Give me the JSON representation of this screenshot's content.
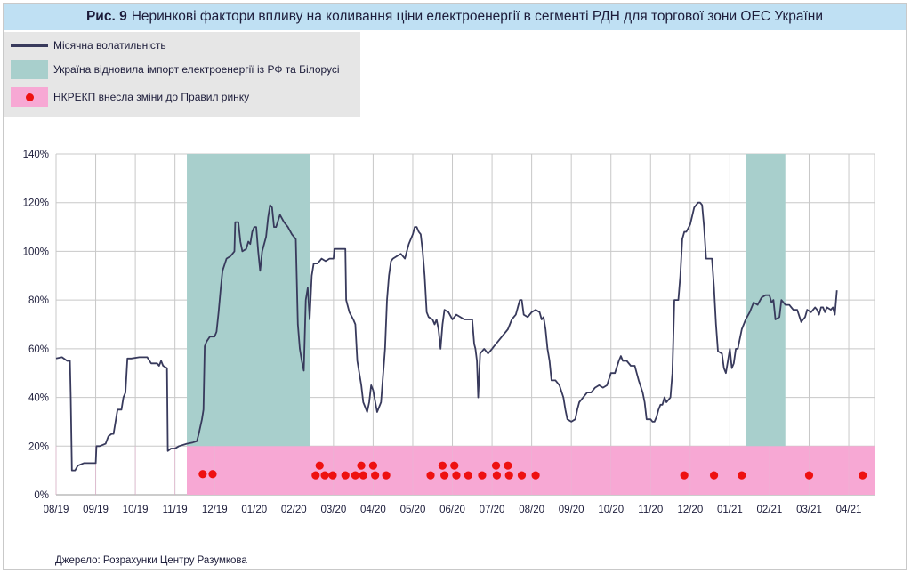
{
  "figure": {
    "label": "Рис. 9",
    "title": "Неринкові фактори впливу на коливання ціни електроенергії в сегменті РДН для торгової зони ОЕС України",
    "source": "Джерело: Розрахунки Центру Разумкова"
  },
  "legend": [
    {
      "label": "Місячна волатильність",
      "key": "line",
      "color": "#383a5c"
    },
    {
      "label": "Україна відновила імпорт електроенергії із РФ та Білорусі",
      "key": "band",
      "color": "#a8cfcc"
    },
    {
      "label": "НКРЕКП внесла зміни до Правил ринку",
      "key": "dot",
      "color": "#ee1111"
    }
  ],
  "chart_data": {
    "type": "line",
    "title": "Неринкові фактори впливу на коливання ціни електроенергії в сегменті РДН для торгової зони ОЕС України",
    "x_axis": {
      "type": "month-index",
      "min": 0,
      "max": 20.65,
      "tick_labels": [
        "08/19",
        "09/19",
        "10/19",
        "11/19",
        "12/19",
        "01/20",
        "02/20",
        "03/20",
        "04/20",
        "05/20",
        "06/20",
        "07/20",
        "08/20",
        "09/20",
        "10/20",
        "11/20",
        "12/20",
        "01/21",
        "02/21",
        "03/21",
        "04/21"
      ]
    },
    "y_axis": {
      "min": 0,
      "max": 140,
      "unit": "%",
      "tick_labels": [
        "0%",
        "20%",
        "40%",
        "60%",
        "80%",
        "100%",
        "120%",
        "140%"
      ]
    },
    "grid": true,
    "series": [
      {
        "name": "Місячна волатильність",
        "color": "#383a5c",
        "points": [
          [
            0.0,
            56
          ],
          [
            0.15,
            56.5
          ],
          [
            0.28,
            55
          ],
          [
            0.35,
            55
          ],
          [
            0.37,
            40
          ],
          [
            0.4,
            10
          ],
          [
            0.48,
            10
          ],
          [
            0.55,
            12
          ],
          [
            0.7,
            13
          ],
          [
            0.9,
            13
          ],
          [
            1.0,
            13
          ],
          [
            1.02,
            20
          ],
          [
            1.1,
            20
          ],
          [
            1.25,
            21
          ],
          [
            1.32,
            24
          ],
          [
            1.4,
            25
          ],
          [
            1.45,
            25
          ],
          [
            1.55,
            35
          ],
          [
            1.65,
            35
          ],
          [
            1.7,
            40
          ],
          [
            1.75,
            42
          ],
          [
            1.8,
            56
          ],
          [
            1.9,
            56
          ],
          [
            2.1,
            56.5
          ],
          [
            2.3,
            56.5
          ],
          [
            2.4,
            54
          ],
          [
            2.55,
            54
          ],
          [
            2.6,
            53
          ],
          [
            2.65,
            55
          ],
          [
            2.7,
            53
          ],
          [
            2.8,
            52
          ],
          [
            2.82,
            18
          ],
          [
            2.9,
            19
          ],
          [
            3.0,
            19
          ],
          [
            3.1,
            20
          ],
          [
            3.3,
            21
          ],
          [
            3.45,
            21.5
          ],
          [
            3.55,
            22
          ],
          [
            3.6,
            25
          ],
          [
            3.68,
            31
          ],
          [
            3.72,
            35
          ],
          [
            3.75,
            61
          ],
          [
            3.8,
            63
          ],
          [
            3.88,
            65
          ],
          [
            4.0,
            65
          ],
          [
            4.05,
            67
          ],
          [
            4.1,
            75
          ],
          [
            4.15,
            84
          ],
          [
            4.2,
            92
          ],
          [
            4.3,
            97
          ],
          [
            4.4,
            98
          ],
          [
            4.5,
            100
          ],
          [
            4.52,
            112
          ],
          [
            4.6,
            112
          ],
          [
            4.65,
            104
          ],
          [
            4.7,
            100
          ],
          [
            4.8,
            101
          ],
          [
            4.85,
            104
          ],
          [
            4.9,
            103
          ],
          [
            4.95,
            108
          ],
          [
            5.0,
            110
          ],
          [
            5.05,
            110
          ],
          [
            5.1,
            100
          ],
          [
            5.15,
            92
          ],
          [
            5.2,
            100
          ],
          [
            5.3,
            106
          ],
          [
            5.35,
            114
          ],
          [
            5.4,
            119
          ],
          [
            5.45,
            118
          ],
          [
            5.5,
            110
          ],
          [
            5.55,
            110
          ],
          [
            5.65,
            115
          ],
          [
            5.75,
            112
          ],
          [
            5.85,
            110
          ],
          [
            5.95,
            107
          ],
          [
            6.0,
            106
          ],
          [
            6.05,
            105
          ],
          [
            6.1,
            70
          ],
          [
            6.15,
            60
          ],
          [
            6.2,
            55
          ],
          [
            6.25,
            51
          ],
          [
            6.3,
            80
          ],
          [
            6.35,
            85
          ],
          [
            6.4,
            72
          ],
          [
            6.45,
            90
          ],
          [
            6.5,
            95
          ],
          [
            6.6,
            95
          ],
          [
            6.7,
            97
          ],
          [
            6.8,
            96
          ],
          [
            6.9,
            97
          ],
          [
            7.0,
            97
          ],
          [
            7.02,
            101
          ],
          [
            7.3,
            101
          ],
          [
            7.32,
            80
          ],
          [
            7.4,
            75
          ],
          [
            7.5,
            72
          ],
          [
            7.55,
            70
          ],
          [
            7.6,
            55
          ],
          [
            7.7,
            45
          ],
          [
            7.75,
            38
          ],
          [
            7.85,
            34
          ],
          [
            7.9,
            38
          ],
          [
            7.95,
            45
          ],
          [
            8.0,
            43
          ],
          [
            8.1,
            34
          ],
          [
            8.2,
            38
          ],
          [
            8.3,
            60
          ],
          [
            8.35,
            80
          ],
          [
            8.4,
            90
          ],
          [
            8.45,
            96
          ],
          [
            8.5,
            97
          ],
          [
            8.6,
            98
          ],
          [
            8.7,
            99
          ],
          [
            8.8,
            97
          ],
          [
            8.85,
            100
          ],
          [
            8.9,
            103
          ],
          [
            9.0,
            107
          ],
          [
            9.05,
            110
          ],
          [
            9.1,
            110
          ],
          [
            9.15,
            108
          ],
          [
            9.2,
            107
          ],
          [
            9.25,
            100
          ],
          [
            9.3,
            90
          ],
          [
            9.35,
            75
          ],
          [
            9.4,
            73
          ],
          [
            9.5,
            72
          ],
          [
            9.55,
            70
          ],
          [
            9.6,
            72
          ],
          [
            9.65,
            68
          ],
          [
            9.7,
            60
          ],
          [
            9.75,
            70
          ],
          [
            9.8,
            76
          ],
          [
            9.9,
            75
          ],
          [
            10.0,
            72
          ],
          [
            10.1,
            74
          ],
          [
            10.3,
            72
          ],
          [
            10.4,
            72
          ],
          [
            10.5,
            72
          ],
          [
            10.55,
            62
          ],
          [
            10.58,
            60
          ],
          [
            10.62,
            55
          ],
          [
            10.65,
            40
          ],
          [
            10.7,
            58
          ],
          [
            10.8,
            60
          ],
          [
            10.9,
            58
          ],
          [
            11.0,
            60
          ],
          [
            11.05,
            61
          ],
          [
            11.1,
            62
          ],
          [
            11.25,
            65
          ],
          [
            11.4,
            68
          ],
          [
            11.5,
            72
          ],
          [
            11.6,
            74
          ],
          [
            11.7,
            80
          ],
          [
            11.75,
            80
          ],
          [
            11.8,
            74
          ],
          [
            11.9,
            73
          ],
          [
            12.0,
            75
          ],
          [
            12.1,
            76
          ],
          [
            12.2,
            75
          ],
          [
            12.25,
            72
          ],
          [
            12.3,
            73
          ],
          [
            12.35,
            68
          ],
          [
            12.4,
            60
          ],
          [
            12.45,
            55
          ],
          [
            12.5,
            47
          ],
          [
            12.6,
            47
          ],
          [
            12.7,
            45
          ],
          [
            12.8,
            40
          ],
          [
            12.85,
            35
          ],
          [
            12.9,
            31
          ],
          [
            13.0,
            30
          ],
          [
            13.1,
            31
          ],
          [
            13.15,
            35
          ],
          [
            13.2,
            38
          ],
          [
            13.3,
            40
          ],
          [
            13.4,
            42
          ],
          [
            13.5,
            42
          ],
          [
            13.6,
            44
          ],
          [
            13.7,
            45
          ],
          [
            13.8,
            44
          ],
          [
            13.9,
            45
          ],
          [
            14.0,
            50
          ],
          [
            14.1,
            50
          ],
          [
            14.2,
            55
          ],
          [
            14.25,
            57
          ],
          [
            14.3,
            55
          ],
          [
            14.4,
            55
          ],
          [
            14.5,
            53
          ],
          [
            14.6,
            53
          ],
          [
            14.65,
            50
          ],
          [
            14.7,
            47
          ],
          [
            14.8,
            42
          ],
          [
            14.85,
            38
          ],
          [
            14.9,
            31
          ],
          [
            15.0,
            31
          ],
          [
            15.05,
            30
          ],
          [
            15.1,
            30
          ],
          [
            15.15,
            32
          ],
          [
            15.2,
            35
          ],
          [
            15.25,
            37
          ],
          [
            15.3,
            37
          ],
          [
            15.35,
            40
          ],
          [
            15.4,
            38
          ],
          [
            15.5,
            40
          ],
          [
            15.55,
            50
          ],
          [
            15.6,
            80
          ],
          [
            15.7,
            80
          ],
          [
            15.75,
            90
          ],
          [
            15.8,
            105
          ],
          [
            15.85,
            108
          ],
          [
            15.9,
            108
          ],
          [
            16.0,
            111
          ],
          [
            16.1,
            118
          ],
          [
            16.2,
            120
          ],
          [
            16.25,
            120
          ],
          [
            16.3,
            119
          ],
          [
            16.35,
            110
          ],
          [
            16.4,
            97
          ],
          [
            16.5,
            97
          ],
          [
            16.55,
            97
          ],
          [
            16.6,
            85
          ],
          [
            16.65,
            70
          ],
          [
            16.7,
            59
          ],
          [
            16.8,
            58
          ],
          [
            16.85,
            52
          ],
          [
            16.9,
            50
          ],
          [
            16.95,
            55
          ],
          [
            17.0,
            60
          ],
          [
            17.05,
            52
          ],
          [
            17.1,
            54
          ],
          [
            17.15,
            60
          ],
          [
            17.2,
            60
          ],
          [
            17.3,
            68
          ],
          [
            17.4,
            72
          ],
          [
            17.5,
            75
          ],
          [
            17.6,
            79
          ],
          [
            17.7,
            78
          ],
          [
            17.8,
            81
          ],
          [
            17.9,
            82
          ],
          [
            18.0,
            82
          ],
          [
            18.05,
            79
          ],
          [
            18.1,
            80
          ],
          [
            18.15,
            72
          ],
          [
            18.25,
            73
          ],
          [
            18.3,
            80
          ],
          [
            18.4,
            78
          ],
          [
            18.5,
            78
          ],
          [
            18.6,
            76
          ],
          [
            18.7,
            76
          ],
          [
            18.8,
            71
          ],
          [
            18.85,
            72
          ],
          [
            18.9,
            73
          ],
          [
            18.95,
            76
          ],
          [
            19.05,
            75
          ],
          [
            19.15,
            77
          ],
          [
            19.2,
            76
          ],
          [
            19.25,
            74
          ],
          [
            19.3,
            77
          ],
          [
            19.35,
            77
          ],
          [
            19.4,
            75
          ],
          [
            19.45,
            77
          ],
          [
            19.55,
            76
          ],
          [
            19.6,
            77
          ],
          [
            19.65,
            74
          ],
          [
            19.7,
            84
          ]
        ]
      }
    ],
    "import_periods": [
      [
        3.3,
        6.4
      ],
      [
        17.4,
        18.4
      ]
    ],
    "rule_change_band": {
      "x_range": [
        3.3,
        20.65
      ],
      "y_range": [
        0,
        20
      ]
    },
    "rule_change_dots": [
      [
        3.7,
        8.5
      ],
      [
        3.95,
        8.5
      ],
      [
        6.55,
        8
      ],
      [
        6.65,
        12
      ],
      [
        6.78,
        8
      ],
      [
        6.98,
        8
      ],
      [
        7.3,
        8
      ],
      [
        7.55,
        8
      ],
      [
        7.7,
        12
      ],
      [
        7.75,
        8
      ],
      [
        8.0,
        12
      ],
      [
        8.05,
        8
      ],
      [
        8.33,
        8
      ],
      [
        9.45,
        8
      ],
      [
        9.75,
        12
      ],
      [
        9.8,
        8
      ],
      [
        10.05,
        12
      ],
      [
        10.1,
        8
      ],
      [
        10.4,
        8
      ],
      [
        10.75,
        8
      ],
      [
        11.1,
        12
      ],
      [
        11.12,
        8
      ],
      [
        11.4,
        12
      ],
      [
        11.43,
        8
      ],
      [
        11.75,
        8
      ],
      [
        12.1,
        8
      ],
      [
        15.85,
        8
      ],
      [
        16.6,
        8
      ],
      [
        17.3,
        8
      ],
      [
        19.0,
        8
      ],
      [
        20.35,
        8
      ]
    ]
  }
}
